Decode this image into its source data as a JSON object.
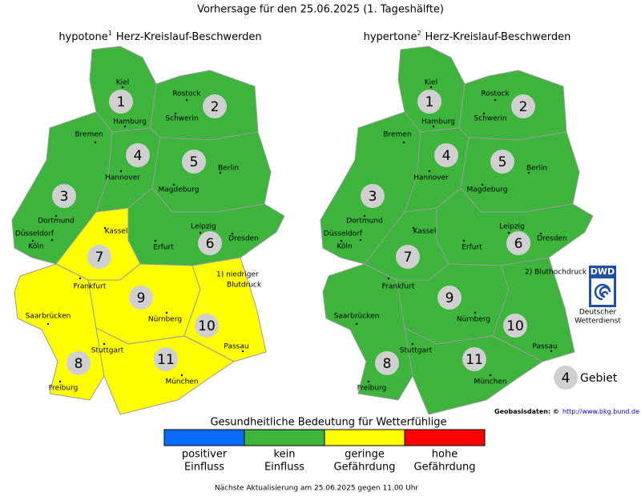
{
  "title": "Vorhersage für den 25.06.2025 (1. Tageshälfte)",
  "maps": [
    {
      "title": "hypotone",
      "superscript": "1",
      "subtitle": "Herz-Kreislauf-Beschwerden",
      "note": [
        "1) niedriger",
        "Blutdruck"
      ],
      "regions": [
        {
          "label": "1",
          "color": "#3db53d"
        },
        {
          "label": "2",
          "color": "#3db53d"
        },
        {
          "label": "3",
          "color": "#3db53d"
        },
        {
          "label": "4",
          "color": "#3db53d"
        },
        {
          "label": "5",
          "color": "#3db53d"
        },
        {
          "label": "6",
          "color": "#3db53d"
        },
        {
          "label": "7",
          "color": "#ffff00"
        },
        {
          "label": "8",
          "color": "#ffff00"
        },
        {
          "label": "9",
          "color": "#ffff00"
        },
        {
          "label": "10",
          "color": "#ffff00"
        },
        {
          "label": "11",
          "color": "#ffff00"
        }
      ]
    },
    {
      "title": "hypertone",
      "superscript": "2",
      "subtitle": "Herz-Kreislauf-Beschwerden",
      "note": [
        "2) Bluthochdruck"
      ],
      "regions": [
        {
          "label": "1",
          "color": "#3db53d"
        },
        {
          "label": "2",
          "color": "#3db53d"
        },
        {
          "label": "3",
          "color": "#3db53d"
        },
        {
          "label": "4",
          "color": "#3db53d"
        },
        {
          "label": "5",
          "color": "#3db53d"
        },
        {
          "label": "6",
          "color": "#3db53d"
        },
        {
          "label": "7",
          "color": "#3db53d"
        },
        {
          "label": "8",
          "color": "#3db53d"
        },
        {
          "label": "9",
          "color": "#3db53d"
        },
        {
          "label": "10",
          "color": "#3db53d"
        },
        {
          "label": "11",
          "color": "#3db53d"
        }
      ]
    }
  ],
  "cities": [
    "Kiel",
    "Rostock",
    "Hamburg",
    "Schwerin",
    "Bremen",
    "Hannover",
    "Berlin",
    "Magdeburg",
    "Dortmund",
    "Düsseldorf",
    "Köln",
    "Kassel",
    "Leipzig",
    "Dresden",
    "Erfurt",
    "Frankfurt",
    "Saarbrücken",
    "Nürnberg",
    "Stuttgart",
    "Passau",
    "Freiburg",
    "München"
  ],
  "logo": {
    "text": "DWD",
    "caption": [
      "Deutscher",
      "Wetterdienst"
    ]
  },
  "region_key": {
    "label": "4",
    "text": "Gebiet"
  },
  "source": {
    "text": "Geobasisdaten: ©",
    "url": "http://www.bkg.bund.de"
  },
  "legend": {
    "title": "Gesundheitliche Bedeutung für Wetterfühlige",
    "items": [
      {
        "color": "#0a6cff",
        "lines": [
          "positiver",
          "Einfluss"
        ]
      },
      {
        "color": "#3db53d",
        "lines": [
          "kein",
          "Einfluss"
        ]
      },
      {
        "color": "#ffff00",
        "lines": [
          "geringe",
          "Gefährdung"
        ]
      },
      {
        "color": "#ff0000",
        "lines": [
          "hohe",
          "Gefährdung"
        ]
      }
    ]
  },
  "footer": "Nächste Aktualisierung am 25.06.2025 gegen 11.00 Uhr"
}
